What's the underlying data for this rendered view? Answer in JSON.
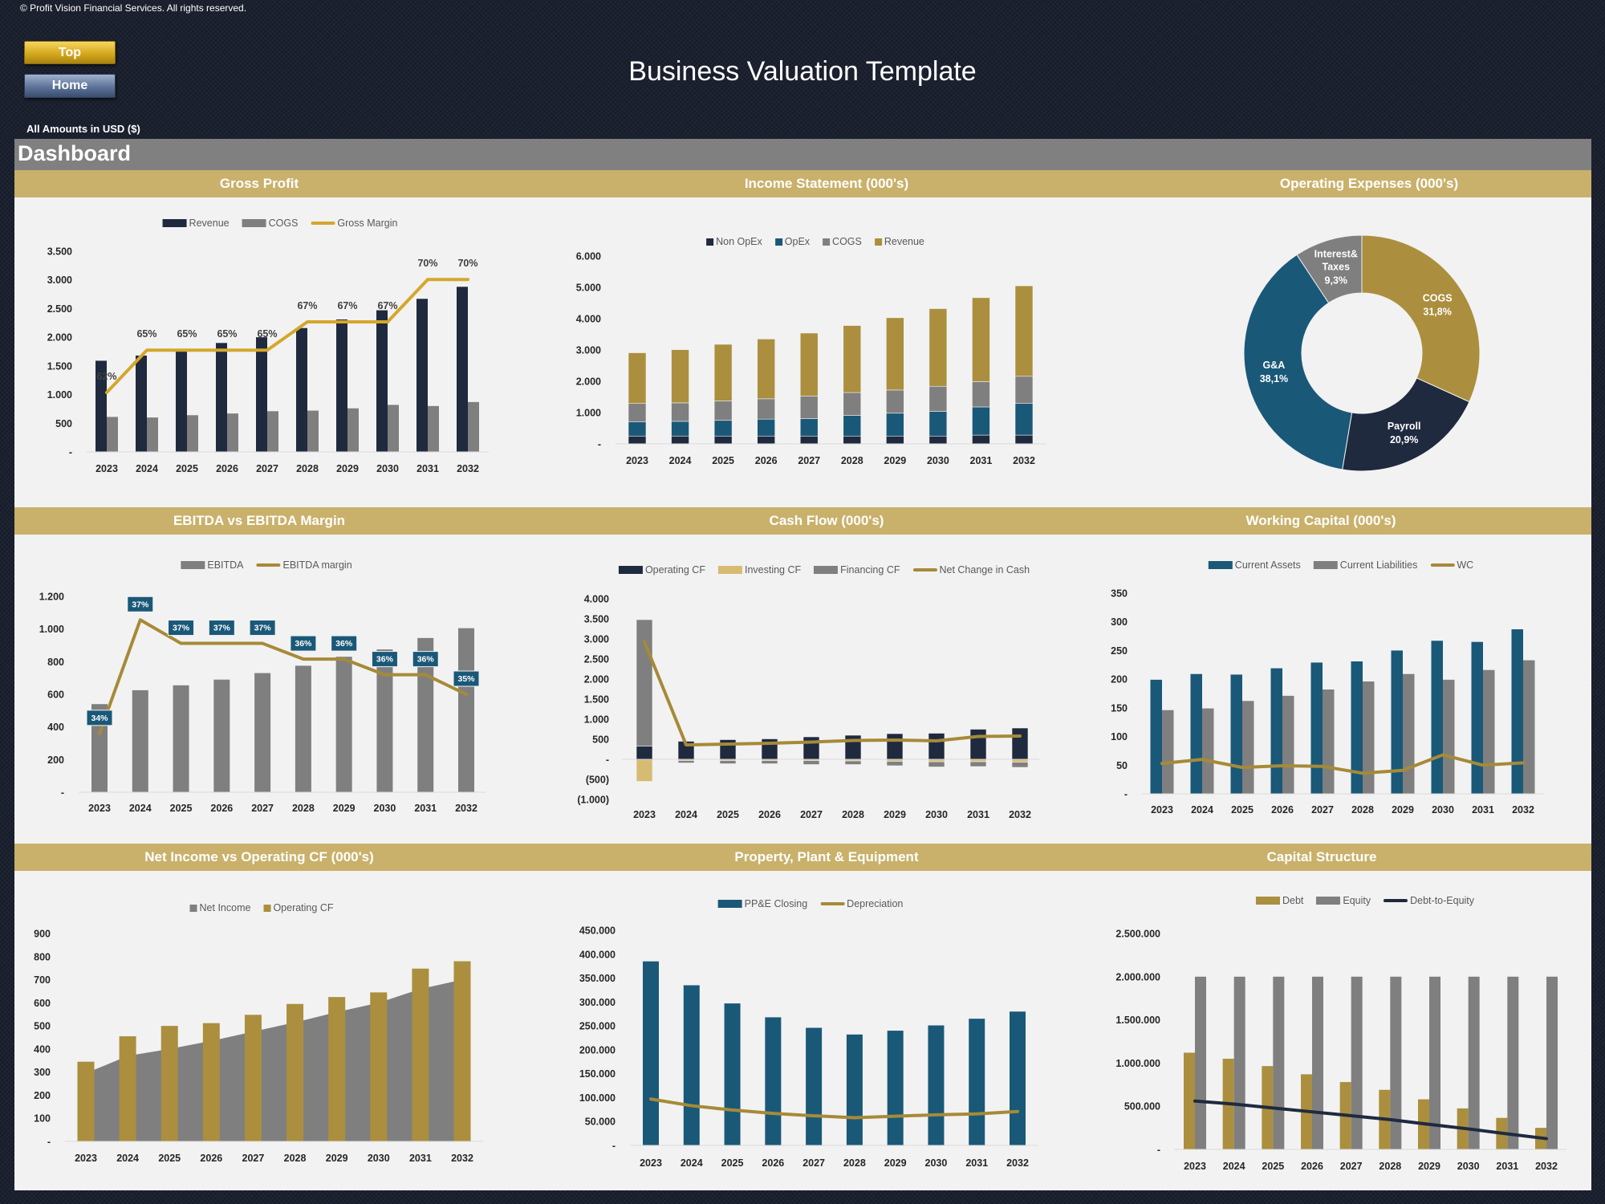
{
  "header": {
    "copyright": "© Profit Vision Financial Services. All rights reserved.",
    "top_button": "Top",
    "home_button": "Home",
    "title": "Business Valuation Template",
    "amounts_note": "All Amounts in  USD ($)",
    "dashboard_title": "Dashboard"
  },
  "colors": {
    "background": "#1b2130",
    "panel": "#f2f2f2",
    "section_header": "#c9b16b",
    "navy": "#1f2a3f",
    "gray": "#7f7f7f",
    "teal": "#1a5878",
    "gold_bar": "#ab8f3e",
    "gold_line": "#a68a38"
  },
  "chart_data": [
    {
      "type": "bar+line",
      "title": "Gross Profit",
      "categories": [
        "2023",
        "2024",
        "2025",
        "2026",
        "2027",
        "2028",
        "2029",
        "2030",
        "2031",
        "2032"
      ],
      "ylim": [
        0,
        3500
      ],
      "yticks": [
        0,
        500,
        1000,
        1500,
        2000,
        2500,
        3000,
        3500
      ],
      "ytick_labels": [
        "-",
        "500",
        "1.000",
        "1.500",
        "2.000",
        "2.500",
        "3.000",
        "3.500"
      ],
      "y2lim": [
        57.8,
        72.0
      ],
      "legend": "top",
      "series": [
        {
          "name": "Revenue",
          "type": "bar",
          "color": "#1f2a3f",
          "values": [
            1590,
            1680,
            1790,
            1900,
            2000,
            2160,
            2310,
            2470,
            2670,
            2880
          ]
        },
        {
          "name": "COGS",
          "type": "bar",
          "color": "#7f7f7f",
          "values": [
            610,
            600,
            640,
            670,
            710,
            720,
            760,
            820,
            800,
            870
          ]
        },
        {
          "name": "Gross Margin",
          "type": "line",
          "axis": "secondary",
          "color": "#d4a72c",
          "values": [
            62,
            65,
            65,
            65,
            65,
            67,
            67,
            67,
            70,
            70
          ],
          "labels": [
            "62%",
            "65%",
            "65%",
            "65%",
            "65%",
            "67%",
            "67%",
            "67%",
            "70%",
            "70%"
          ]
        }
      ]
    },
    {
      "type": "stacked-bar",
      "title": "Income Statement (000's)",
      "categories": [
        "2023",
        "2024",
        "2025",
        "2026",
        "2027",
        "2028",
        "2029",
        "2030",
        "2031",
        "2032"
      ],
      "ylim": [
        0,
        6000
      ],
      "yticks": [
        0,
        1000,
        2000,
        3000,
        4000,
        5000,
        6000
      ],
      "ytick_labels": [
        "-",
        "1.000",
        "2.000",
        "3.000",
        "4.000",
        "5.000",
        "6.000"
      ],
      "legend": "top",
      "series": [
        {
          "name": "Non OpEx",
          "type": "stacked",
          "color": "#1f2a3f",
          "values": [
            250,
            250,
            250,
            250,
            250,
            250,
            250,
            250,
            280,
            280
          ]
        },
        {
          "name": "OpEx",
          "type": "stacked",
          "color": "#1a5878",
          "values": [
            450,
            470,
            500,
            540,
            560,
            660,
            730,
            790,
            900,
            1010
          ]
        },
        {
          "name": "COGS",
          "type": "stacked",
          "color": "#7f7f7f",
          "values": [
            590,
            590,
            620,
            650,
            720,
            730,
            740,
            800,
            810,
            870
          ]
        },
        {
          "name": "Revenue",
          "type": "stacked",
          "color": "#ab8f3e",
          "values": [
            1620,
            1700,
            1810,
            1910,
            2010,
            2140,
            2310,
            2480,
            2680,
            2890
          ]
        }
      ]
    },
    {
      "type": "pie",
      "title": "Operating Expenses (000's)",
      "slices": [
        {
          "name": "COGS",
          "value": 31.8,
          "label": "31,8%",
          "color": "#ab8f3e"
        },
        {
          "name": "Payroll",
          "value": 20.9,
          "label": "20,9%",
          "color": "#1f2a3f"
        },
        {
          "name": "G&A",
          "value": 38.1,
          "label": "38,1%",
          "color": "#1a5878"
        },
        {
          "name": "Interest& Taxes",
          "value": 9.3,
          "label": "9,3%",
          "color": "#7f7f7f"
        }
      ]
    },
    {
      "type": "bar+line",
      "title": "EBITDA vs EBITDA Margin",
      "categories": [
        "2023",
        "2024",
        "2025",
        "2026",
        "2027",
        "2028",
        "2029",
        "2030",
        "2031",
        "2032"
      ],
      "ylim": [
        0,
        1200
      ],
      "yticks": [
        0,
        200,
        400,
        600,
        800,
        1000,
        1200
      ],
      "ytick_labels": [
        "-",
        "200",
        "400",
        "600",
        "800",
        "1.000",
        "1.200"
      ],
      "y2lim": [
        32.9,
        37.9
      ],
      "legend": "top",
      "series": [
        {
          "name": "EBITDA",
          "type": "bar",
          "color": "#7f7f7f",
          "values": [
            540,
            625,
            655,
            690,
            730,
            775,
            830,
            875,
            945,
            1005
          ]
        },
        {
          "name": "EBITDA margin",
          "type": "line",
          "axis": "secondary",
          "color": "#a68a38",
          "values": [
            34.4,
            37.3,
            36.7,
            36.7,
            36.7,
            36.3,
            36.3,
            35.9,
            35.9,
            35.4
          ],
          "labels": [
            "34%",
            "37%",
            "37%",
            "37%",
            "37%",
            "36%",
            "36%",
            "36%",
            "36%",
            "35%"
          ]
        }
      ]
    },
    {
      "type": "stacked-bar+line",
      "title": "Cash Flow (000's)",
      "categories": [
        "2023",
        "2024",
        "2025",
        "2026",
        "2027",
        "2028",
        "2029",
        "2030",
        "2031",
        "2032"
      ],
      "ylim": [
        -1000,
        4000
      ],
      "yticks": [
        -1000,
        -500,
        0,
        500,
        1000,
        1500,
        2000,
        2500,
        3000,
        3500,
        4000
      ],
      "ytick_labels": [
        "(1.000)",
        "(500)",
        "-",
        "500",
        "1.000",
        "1.500",
        "2.000",
        "2.500",
        "3.000",
        "3.500",
        "4.000"
      ],
      "legend": "top",
      "series": [
        {
          "name": "Operating CF",
          "type": "stacked",
          "color": "#1f2a3f",
          "values": [
            330,
            450,
            490,
            510,
            560,
            600,
            640,
            650,
            750,
            780
          ]
        },
        {
          "name": "Investing CF",
          "type": "stacked",
          "color": "#d6bb72",
          "values": [
            -550,
            -30,
            -30,
            -30,
            -30,
            -40,
            -50,
            -60,
            -60,
            -70
          ]
        },
        {
          "name": "Financing CF",
          "type": "stacked",
          "color": "#7f7f7f",
          "values": [
            3150,
            -60,
            -80,
            -80,
            -100,
            -90,
            -110,
            -130,
            -120,
            -130
          ]
        },
        {
          "name": "Net Change in Cash",
          "type": "line",
          "color": "#a68a38",
          "values": [
            2930,
            360,
            380,
            400,
            430,
            470,
            480,
            460,
            570,
            580
          ]
        }
      ]
    },
    {
      "type": "bar+line",
      "title": "Working Capital (000's)",
      "categories": [
        "2023",
        "2024",
        "2025",
        "2026",
        "2027",
        "2028",
        "2029",
        "2030",
        "2031",
        "2032"
      ],
      "ylim": [
        0,
        350
      ],
      "yticks": [
        0,
        50,
        100,
        150,
        200,
        250,
        300,
        350
      ],
      "ytick_labels": [
        "-",
        "50",
        "100",
        "150",
        "200",
        "250",
        "300",
        "350"
      ],
      "legend": "top",
      "series": [
        {
          "name": "Current Assets",
          "type": "bar",
          "color": "#1a5878",
          "values": [
            199,
            209,
            208,
            219,
            229,
            231,
            250,
            267,
            265,
            287
          ]
        },
        {
          "name": "Current Liabilities",
          "type": "bar",
          "color": "#7f7f7f",
          "values": [
            146,
            149,
            162,
            171,
            182,
            196,
            209,
            199,
            216,
            233
          ]
        },
        {
          "name": "WC",
          "type": "line",
          "color": "#a68a38",
          "values": [
            53,
            60,
            46,
            49,
            48,
            36,
            41,
            68,
            50,
            54
          ]
        }
      ]
    },
    {
      "type": "area+bar",
      "title": "Net Income vs Operating CF (000's)",
      "categories": [
        "2023",
        "2024",
        "2025",
        "2026",
        "2027",
        "2028",
        "2029",
        "2030",
        "2031",
        "2032"
      ],
      "ylim": [
        0,
        900
      ],
      "yticks": [
        0,
        100,
        200,
        300,
        400,
        500,
        600,
        700,
        800,
        900
      ],
      "ytick_labels": [
        "-",
        "100",
        "200",
        "300",
        "400",
        "500",
        "600",
        "700",
        "800",
        "900"
      ],
      "legend": "top",
      "series": [
        {
          "name": "Net Income",
          "type": "area",
          "color": "#7f7f7f",
          "values": [
            295,
            370,
            400,
            435,
            475,
            515,
            560,
            600,
            660,
            700
          ]
        },
        {
          "name": "Operating CF",
          "type": "bar",
          "color": "#ab8f3e",
          "values": [
            345,
            455,
            500,
            512,
            548,
            595,
            625,
            645,
            748,
            780
          ]
        }
      ]
    },
    {
      "type": "bar+line",
      "title": "Property, Plant & Equipment",
      "categories": [
        "2023",
        "2024",
        "2025",
        "2026",
        "2027",
        "2028",
        "2029",
        "2030",
        "2031",
        "2032"
      ],
      "ylim": [
        0,
        450000
      ],
      "yticks": [
        0,
        50000,
        100000,
        150000,
        200000,
        250000,
        300000,
        350000,
        400000,
        450000
      ],
      "ytick_labels": [
        "-",
        "50.000",
        "100.000",
        "150.000",
        "200.000",
        "250.000",
        "300.000",
        "350.000",
        "400.000",
        "450.000"
      ],
      "legend": "top",
      "series": [
        {
          "name": "PP&E Closing",
          "type": "bar",
          "color": "#1a5878",
          "values": [
            385000,
            335000,
            297000,
            268000,
            246000,
            232000,
            240000,
            251000,
            265000,
            280000
          ]
        },
        {
          "name": "Depreciation",
          "type": "line",
          "color": "#a68a38",
          "values": [
            97000,
            83000,
            74000,
            67000,
            62000,
            58000,
            61000,
            64000,
            66000,
            71000
          ]
        }
      ]
    },
    {
      "type": "bar+line",
      "title": "Capital Structure",
      "categories": [
        "2023",
        "2024",
        "2025",
        "2026",
        "2027",
        "2028",
        "2029",
        "2030",
        "2031",
        "2032"
      ],
      "ylim": [
        0,
        2500000
      ],
      "yticks": [
        0,
        500000,
        1000000,
        1500000,
        2000000,
        2500000
      ],
      "ytick_labels": [
        "-",
        "500.000",
        "1.000.000",
        "1.500.000",
        "2.000.000",
        "2.500.000"
      ],
      "y2lim": [
        0,
        2.5
      ],
      "legend": "top",
      "series": [
        {
          "name": "Debt",
          "type": "bar",
          "color": "#ab8f3e",
          "values": [
            1120000,
            1050000,
            965000,
            870000,
            780000,
            690000,
            580000,
            475000,
            365000,
            250000
          ]
        },
        {
          "name": "Equity",
          "type": "bar",
          "color": "#7f7f7f",
          "values": [
            2000000,
            2000000,
            2000000,
            2000000,
            2000000,
            2000000,
            2000000,
            2000000,
            2000000,
            2000000
          ]
        },
        {
          "name": "Debt-to-Equity",
          "type": "line",
          "axis": "secondary",
          "color": "#1f2a3f",
          "values": [
            0.56,
            0.525,
            0.48,
            0.435,
            0.39,
            0.345,
            0.29,
            0.2375,
            0.18,
            0.125
          ]
        }
      ]
    }
  ]
}
